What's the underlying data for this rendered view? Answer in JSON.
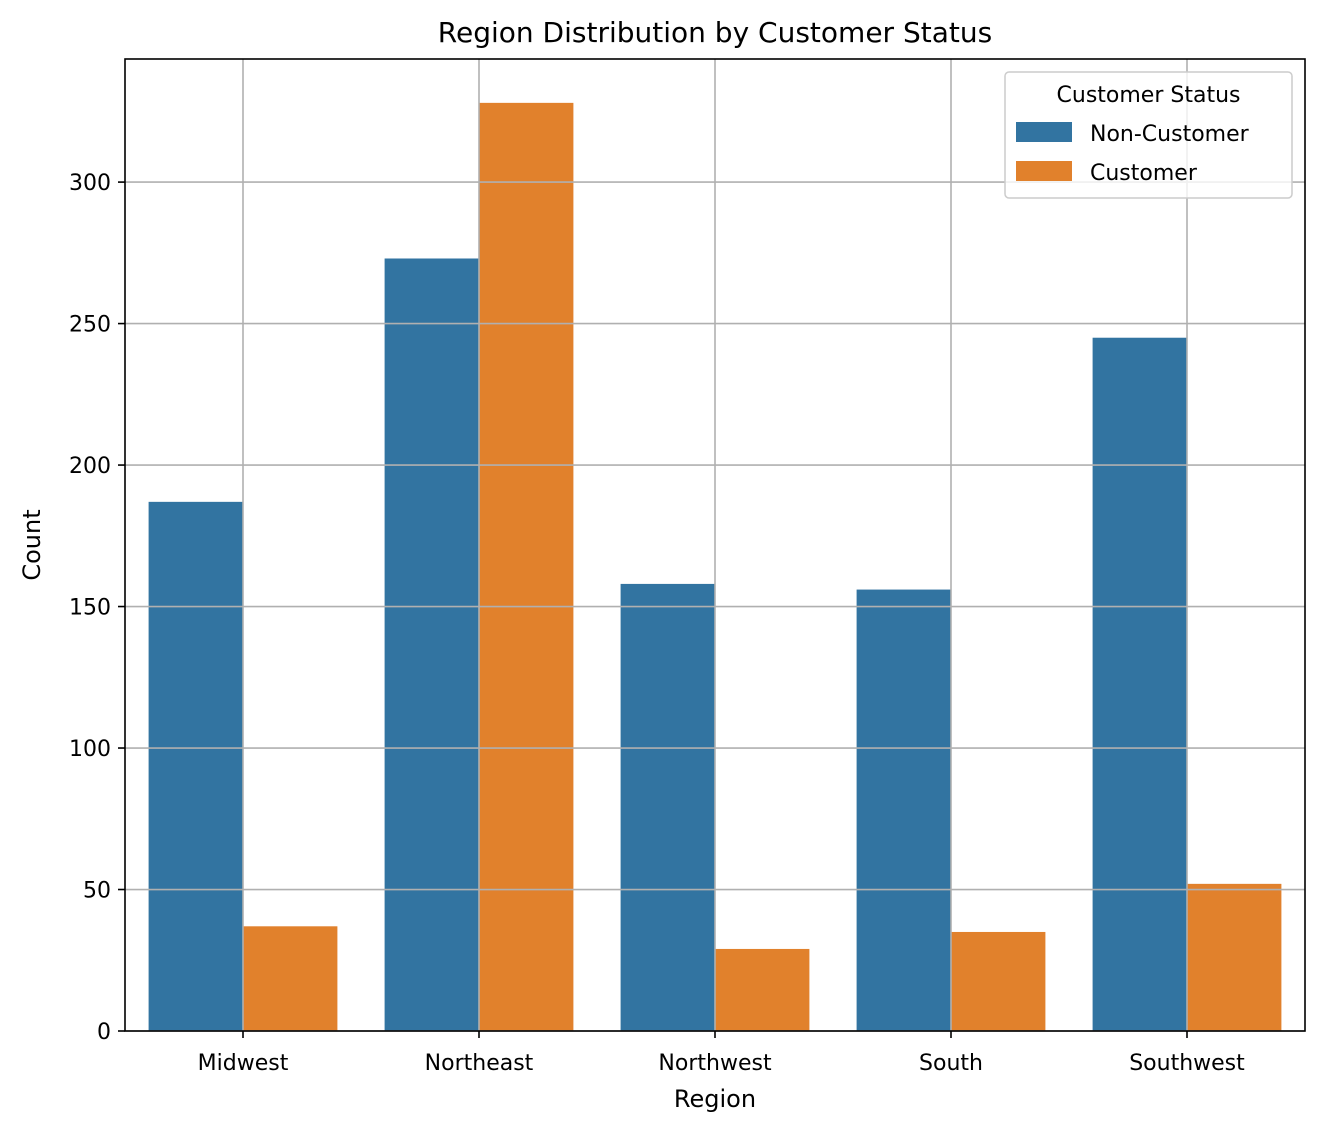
{
  "chart_data": {
    "type": "bar",
    "title": "Region Distribution by Customer Status",
    "xlabel": "Region",
    "ylabel": "Count",
    "categories": [
      "Midwest",
      "Northeast",
      "Northwest",
      "South",
      "Southwest"
    ],
    "series": [
      {
        "name": "Non-Customer",
        "values": [
          187,
          273,
          158,
          156,
          245
        ],
        "color": "#3274a1"
      },
      {
        "name": "Customer",
        "values": [
          37,
          328,
          29,
          35,
          52
        ],
        "color": "#e1812c"
      }
    ],
    "ylim": [
      0,
      343.5
    ],
    "yticks": [
      0,
      50,
      100,
      150,
      200,
      250,
      300
    ],
    "grid": true,
    "legend": {
      "title": "Customer Status",
      "placement": "top-right"
    }
  }
}
